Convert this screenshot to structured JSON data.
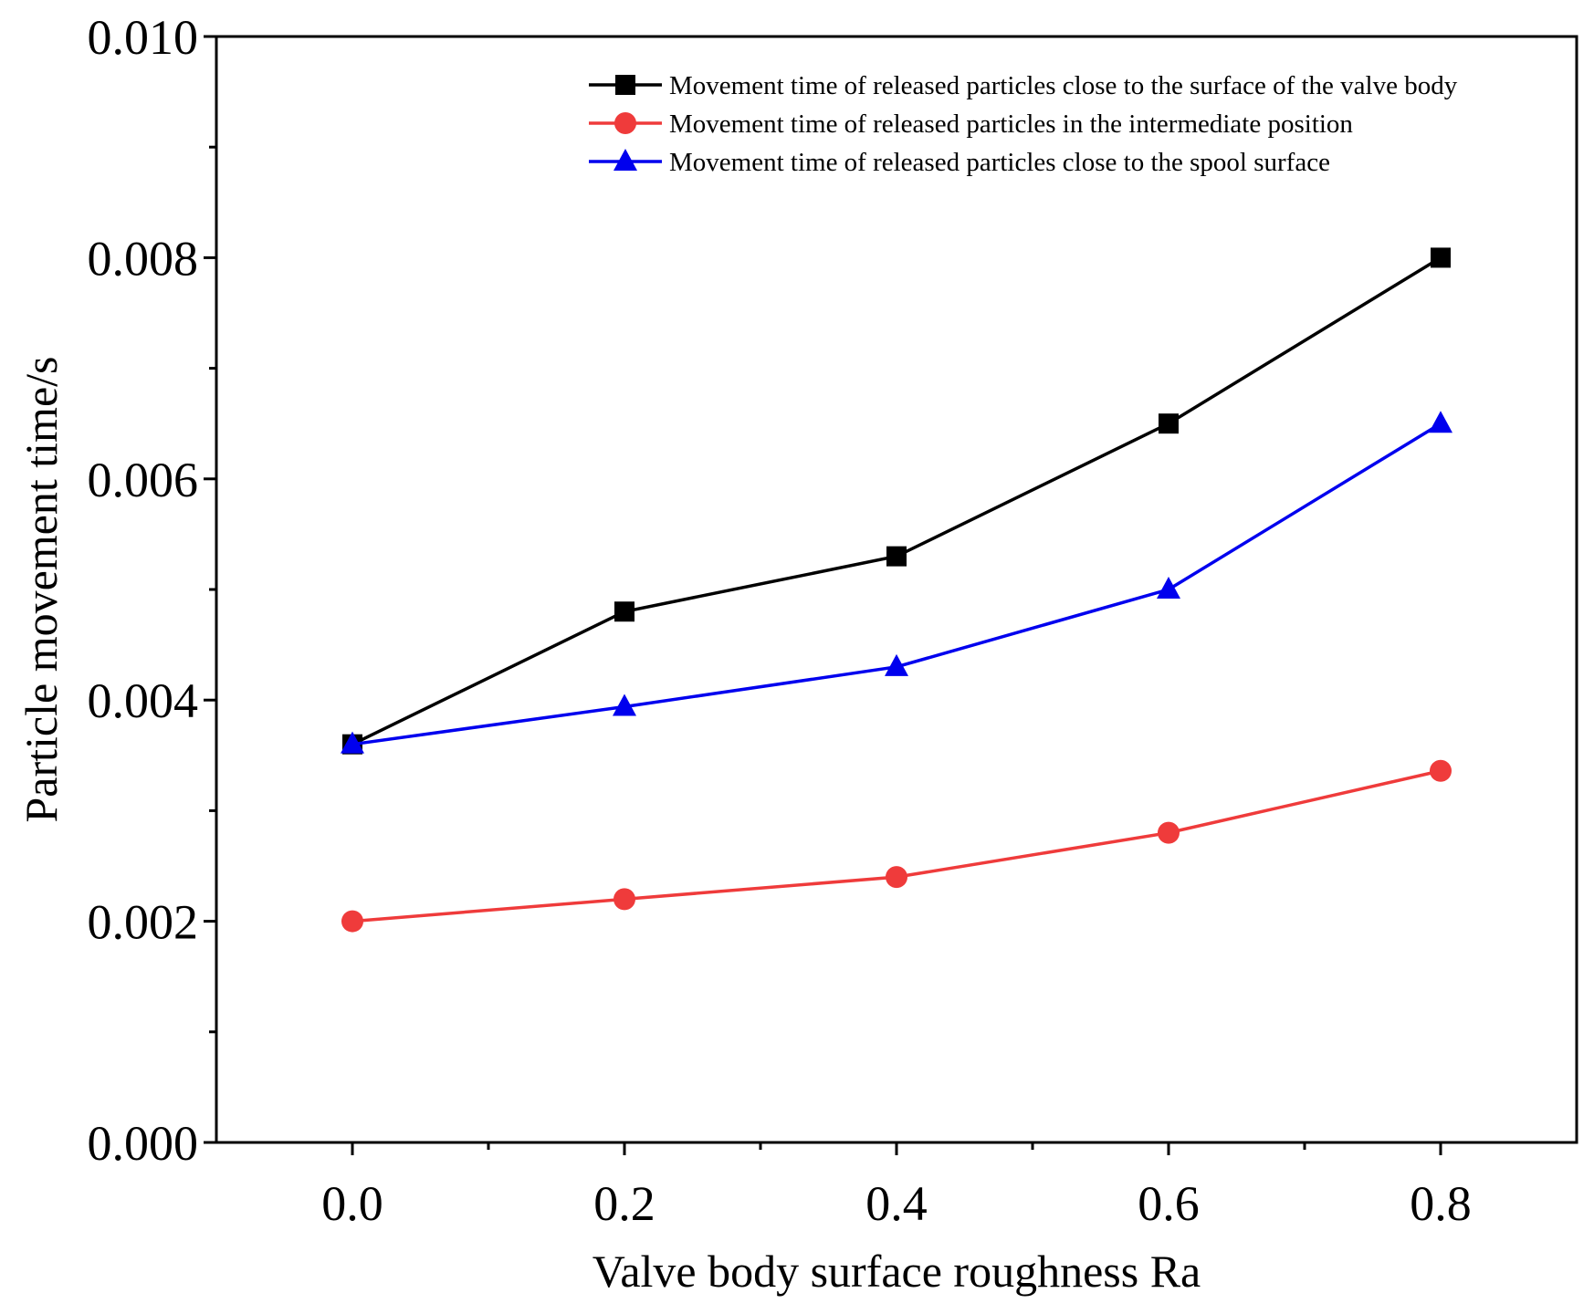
{
  "chart_data": {
    "type": "line",
    "title": "",
    "xlabel": "Valve body surface roughness Ra",
    "ylabel": "Particle movement time/s",
    "x": [
      0.0,
      0.2,
      0.4,
      0.6,
      0.8
    ],
    "xlim": [
      -0.1,
      0.9
    ],
    "ylim": [
      0.0,
      0.01
    ],
    "xticks": [
      0.0,
      0.2,
      0.4,
      0.6,
      0.8
    ],
    "xtick_labels": [
      "0.0",
      "0.2",
      "0.4",
      "0.6",
      "0.8"
    ],
    "xminor": [
      0.1,
      0.3,
      0.5,
      0.7
    ],
    "yticks": [
      0.0,
      0.002,
      0.004,
      0.006,
      0.008,
      0.01
    ],
    "ytick_labels": [
      "0.000",
      "0.002",
      "0.004",
      "0.006",
      "0.008",
      "0.010"
    ],
    "yminor": [
      0.001,
      0.003,
      0.005,
      0.007,
      0.009
    ],
    "grid": false,
    "legend_position": "top-right",
    "series": [
      {
        "name": "Movement time of released particles close to the surface of the valve body",
        "color": "#000000",
        "marker": "square",
        "values": [
          0.0036,
          0.0048,
          0.0053,
          0.0065,
          0.008
        ]
      },
      {
        "name": "Movement time of released particles in the intermediate position",
        "color": "#ef3b3b",
        "marker": "circle",
        "values": [
          0.002,
          0.0022,
          0.0024,
          0.0028,
          0.00336
        ]
      },
      {
        "name": "Movement time of released particles close to the spool surface",
        "color": "#0000ee",
        "marker": "triangle",
        "values": [
          0.0036,
          0.00394,
          0.0043,
          0.005,
          0.0065
        ]
      }
    ]
  }
}
